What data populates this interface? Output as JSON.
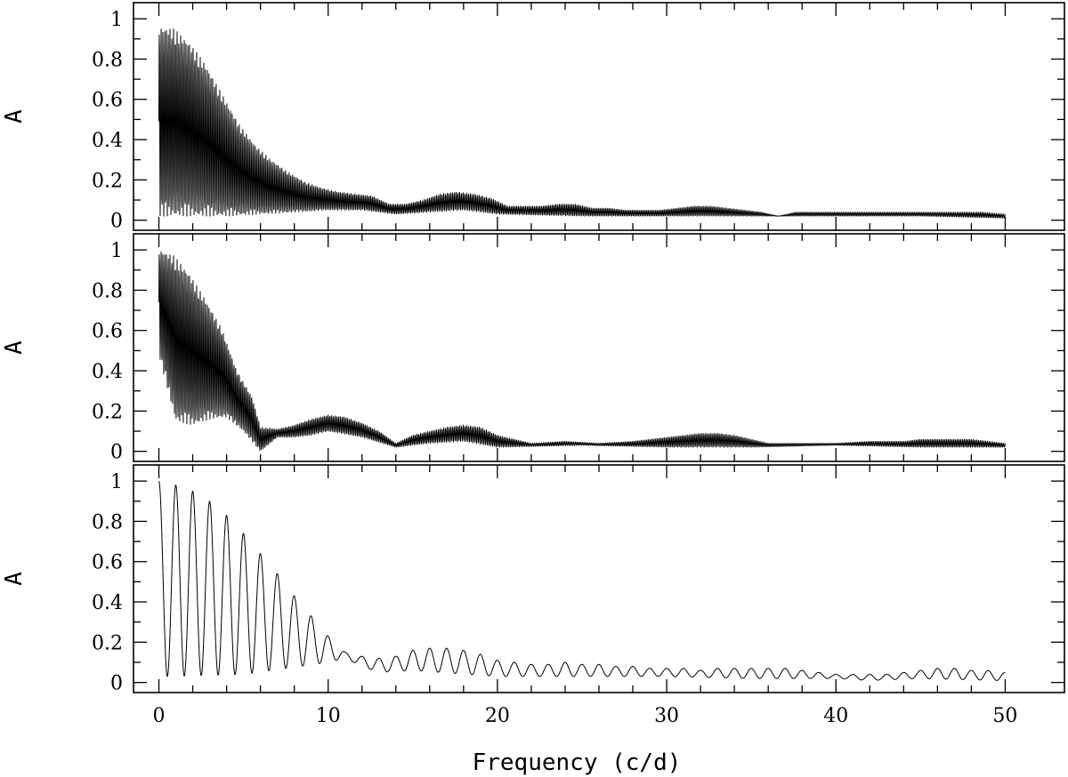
{
  "chart_data": [
    {
      "type": "line",
      "title": "",
      "xlabel": "",
      "ylabel": "A",
      "xlim": [
        -1.5,
        53.5
      ],
      "ylim": [
        -0.05,
        1.08
      ],
      "x_ticks": [
        "0",
        "10",
        "20",
        "30",
        "40",
        "50"
      ],
      "x_ticks_labeled": false,
      "y_ticks": [
        "0",
        "0.2",
        "0.4",
        "0.6",
        "0.8",
        "1"
      ],
      "grid": false,
      "legend": "none",
      "series": [
        {
          "style": "dense fine-comb spectral window (envelope shown)",
          "upper_envelope": {
            "x": [
              0,
              0.9,
              1.8,
              2.7,
              3.7,
              4.7,
              5.7,
              6.6,
              7.6,
              8.6,
              9.6,
              10.6,
              11.6,
              12.6,
              13.6,
              14.6,
              15.6,
              16.6,
              17.6,
              18.6,
              19.6,
              20.6,
              21.6,
              22.6,
              23.6,
              24.6,
              25.6,
              26.6,
              27.6,
              28.6,
              29.6,
              30.6,
              31.6,
              32.6,
              33.6,
              34.6,
              35.6,
              36.6,
              37.6,
              38.6,
              39.6,
              40.6,
              41.6,
              42.6,
              43.6,
              44.6,
              45.6,
              46.6,
              47.6,
              48.6,
              50
            ],
            "y": [
              0.96,
              0.95,
              0.88,
              0.78,
              0.63,
              0.48,
              0.37,
              0.3,
              0.24,
              0.19,
              0.16,
              0.14,
              0.13,
              0.12,
              0.08,
              0.08,
              0.1,
              0.13,
              0.14,
              0.13,
              0.11,
              0.07,
              0.07,
              0.07,
              0.08,
              0.08,
              0.06,
              0.06,
              0.05,
              0.05,
              0.05,
              0.06,
              0.07,
              0.07,
              0.06,
              0.05,
              0.04,
              0.02,
              0.04,
              0.04,
              0.04,
              0.04,
              0.04,
              0.04,
              0.04,
              0.04,
              0.04,
              0.04,
              0.04,
              0.04,
              0.03
            ]
          },
          "lower_envelope": {
            "x": [
              0,
              2,
              4,
              6,
              8,
              10,
              12,
              14,
              16,
              18,
              20,
              25,
              30,
              35,
              40,
              45,
              50
            ],
            "y": [
              0.02,
              0.02,
              0.02,
              0.03,
              0.04,
              0.05,
              0.05,
              0.03,
              0.04,
              0.05,
              0.03,
              0.02,
              0.02,
              0.02,
              0.02,
              0.02,
              0.01
            ]
          }
        }
      ]
    },
    {
      "type": "line",
      "title": "",
      "xlabel": "",
      "ylabel": "A",
      "xlim": [
        -1.5,
        53.5
      ],
      "ylim": [
        -0.05,
        1.08
      ],
      "x_ticks": [
        "0",
        "10",
        "20",
        "30",
        "40",
        "50"
      ],
      "x_ticks_labeled": false,
      "y_ticks": [
        "0",
        "0.2",
        "0.4",
        "0.6",
        "0.8",
        "1"
      ],
      "grid": false,
      "legend": "none",
      "series": [
        {
          "style": "dense fine-comb spectral window (envelope shown)",
          "upper_envelope": {
            "x": [
              0,
              0.9,
              1.8,
              2.7,
              3.7,
              4.6,
              5.5,
              6,
              7,
              8,
              9,
              10,
              11,
              12,
              13,
              14,
              15,
              16,
              17,
              18,
              19,
              20,
              21,
              22,
              24,
              26,
              28,
              30,
              31,
              32,
              33,
              34,
              35,
              36,
              38,
              40,
              42,
              44,
              45,
              46,
              47,
              48,
              49,
              50
            ],
            "y": [
              1.0,
              0.97,
              0.88,
              0.76,
              0.61,
              0.4,
              0.27,
              0.12,
              0.11,
              0.13,
              0.16,
              0.18,
              0.17,
              0.14,
              0.1,
              0.04,
              0.08,
              0.1,
              0.12,
              0.13,
              0.12,
              0.08,
              0.06,
              0.04,
              0.05,
              0.04,
              0.05,
              0.07,
              0.08,
              0.09,
              0.09,
              0.08,
              0.06,
              0.04,
              0.04,
              0.04,
              0.05,
              0.05,
              0.06,
              0.06,
              0.06,
              0.06,
              0.05,
              0.04
            ]
          },
          "lower_envelope": {
            "x": [
              0,
              1,
              2,
              3,
              4,
              5,
              6,
              7,
              8,
              9,
              10,
              12,
              14,
              16,
              18,
              20,
              25,
              30,
              35,
              40,
              45,
              50
            ],
            "y": [
              0.48,
              0.15,
              0.13,
              0.16,
              0.17,
              0.1,
              0.0,
              0.07,
              0.07,
              0.08,
              0.1,
              0.07,
              0.02,
              0.04,
              0.05,
              0.02,
              0.03,
              0.02,
              0.02,
              0.03,
              0.02,
              0.02
            ]
          }
        }
      ]
    },
    {
      "type": "line",
      "title": "",
      "xlabel": "Frequency (c/d)",
      "ylabel": "A",
      "xlim": [
        -1.5,
        53.5
      ],
      "ylim": [
        -0.05,
        1.08
      ],
      "x_ticks": [
        "0",
        "10",
        "20",
        "30",
        "40",
        "50"
      ],
      "x_ticks_labeled": true,
      "y_ticks": [
        "0",
        "0.2",
        "0.4",
        "0.6",
        "0.8",
        "1"
      ],
      "grid": false,
      "legend": "none",
      "series": [
        {
          "style": "smooth oscillating window",
          "minima_x": [
            0,
            0.5,
            1.5,
            2.5,
            3.5,
            4.5,
            5.5,
            6.5,
            7.5,
            8.5,
            9.5,
            10.5,
            11.5,
            12.5,
            13.5,
            14.5,
            15.5,
            16.5,
            17.5,
            18.5,
            19.5,
            20.5,
            21.5,
            22.5,
            23.5,
            24.5,
            25.5,
            26.5,
            27.5,
            28.5,
            29.5,
            30.5,
            31.5,
            32.5,
            33.5,
            34.5,
            35.5,
            36.5,
            37.5,
            38.5,
            39.5,
            40.5,
            41.5,
            42.5,
            43.5,
            44.5,
            45.5,
            46.5,
            47.5,
            48.5,
            49.5
          ],
          "peaks": {
            "x": [
              0,
              1,
              2,
              3,
              4,
              5,
              6,
              7,
              8,
              9,
              10,
              11,
              12,
              13,
              14,
              15,
              16,
              17,
              18,
              19,
              20,
              21,
              22,
              23,
              24,
              25,
              26,
              27,
              28,
              29,
              30,
              31,
              32,
              33,
              34,
              35,
              36,
              37,
              38,
              39,
              40,
              41,
              42,
              43,
              44,
              45,
              46,
              47,
              48,
              49,
              50
            ],
            "y": [
              1.0,
              0.98,
              0.95,
              0.9,
              0.83,
              0.74,
              0.64,
              0.54,
              0.43,
              0.33,
              0.23,
              0.15,
              0.13,
              0.12,
              0.13,
              0.16,
              0.17,
              0.17,
              0.16,
              0.14,
              0.11,
              0.1,
              0.09,
              0.09,
              0.1,
              0.09,
              0.09,
              0.08,
              0.08,
              0.07,
              0.07,
              0.07,
              0.06,
              0.07,
              0.07,
              0.07,
              0.07,
              0.07,
              0.06,
              0.05,
              0.04,
              0.04,
              0.04,
              0.04,
              0.05,
              0.06,
              0.07,
              0.07,
              0.06,
              0.06,
              0.05
            ]
          },
          "troughs": {
            "x": [
              0.5,
              5,
              10,
              11,
              12,
              13,
              15,
              20,
              25,
              30,
              35,
              40,
              42,
              45,
              49.5
            ],
            "y": [
              0.03,
              0.04,
              0.1,
              0.12,
              0.08,
              0.05,
              0.06,
              0.03,
              0.03,
              0.03,
              0.02,
              0.02,
              0.01,
              0.02,
              0.01
            ]
          }
        }
      ]
    }
  ]
}
